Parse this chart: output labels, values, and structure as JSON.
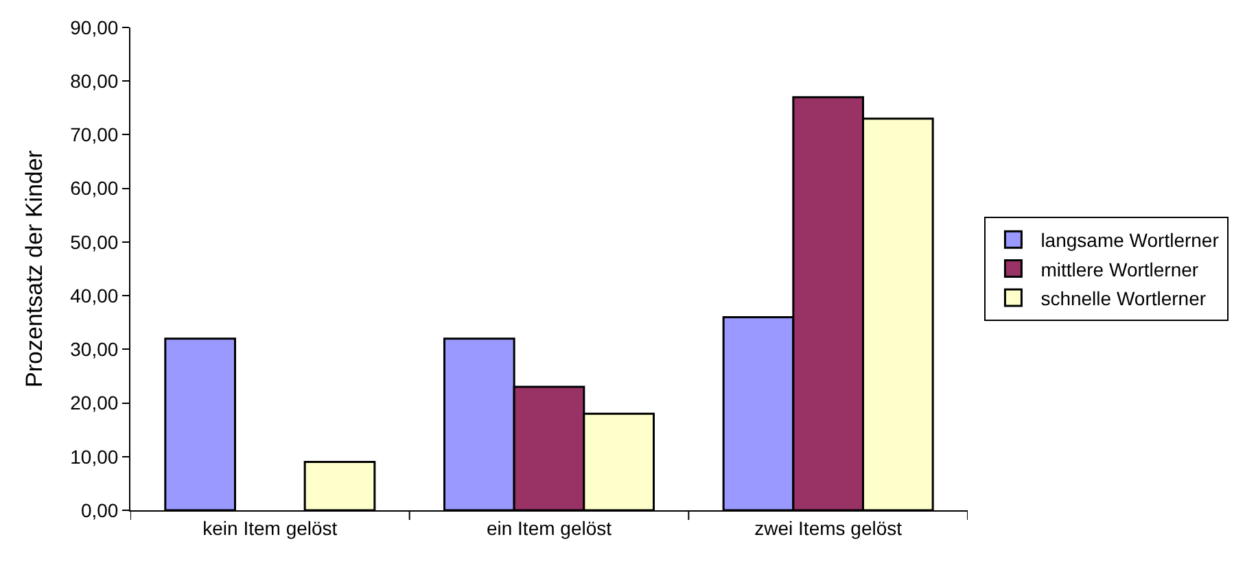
{
  "chart_data": {
    "type": "bar",
    "ylabel": "Prozentsatz der Kinder",
    "categories": [
      "kein Item gelöst",
      "ein Item gelöst",
      "zwei Items gelöst"
    ],
    "series": [
      {
        "name": "langsame Wortlerner",
        "color": "#9999ff",
        "values": [
          32,
          32,
          36
        ]
      },
      {
        "name": "mittlere Wortlerner",
        "color": "#993366",
        "values": [
          null,
          23,
          77
        ]
      },
      {
        "name": "schnelle Wortlerner",
        "color": "#ffffcc",
        "values": [
          9,
          18,
          73
        ]
      }
    ],
    "ylim": [
      0,
      90
    ],
    "yticks": [
      {
        "value": 0,
        "label": "0,00"
      },
      {
        "value": 10,
        "label": "10,00"
      },
      {
        "value": 20,
        "label": "20,00"
      },
      {
        "value": 30,
        "label": "30,00"
      },
      {
        "value": 40,
        "label": "40,00"
      },
      {
        "value": 50,
        "label": "50,00"
      },
      {
        "value": 60,
        "label": "60,00"
      },
      {
        "value": 70,
        "label": "70,00"
      },
      {
        "value": 80,
        "label": "80,00"
      },
      {
        "value": 90,
        "label": "90,00"
      }
    ],
    "legend": "right"
  }
}
